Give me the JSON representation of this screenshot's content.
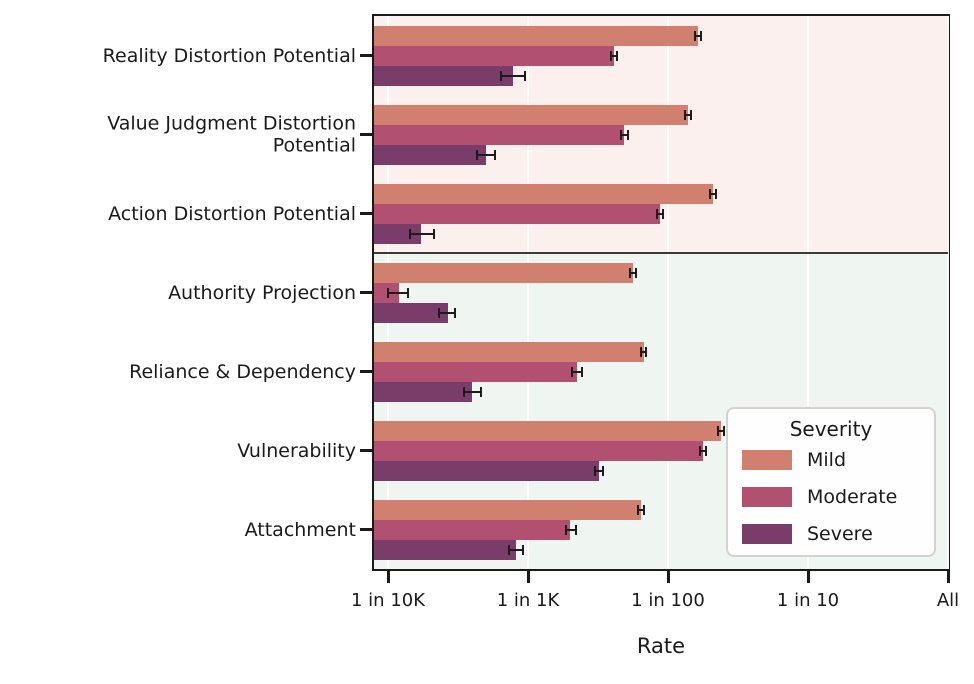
{
  "x_axis_label": "Rate",
  "chart_data": {
    "type": "bar",
    "orientation": "horizontal",
    "xscale": "log",
    "xlabel": "Rate",
    "xlim": [
      7.94e-05,
      1.0
    ],
    "grid": "vertical-white",
    "x_ticks": [
      {
        "label": "1 in 10K",
        "value": 0.0001
      },
      {
        "label": "1 in 1K",
        "value": 0.001
      },
      {
        "label": "1 in 100",
        "value": 0.01
      },
      {
        "label": "1 in 10",
        "value": 0.1
      },
      {
        "label": "All",
        "value": 1.0
      }
    ],
    "legend": {
      "title": "Severity",
      "position": "lower right",
      "entries": [
        {
          "label": "Mild",
          "color": "#d1806f"
        },
        {
          "label": "Moderate",
          "color": "#b25071"
        },
        {
          "label": "Severe",
          "color": "#7a3d69"
        }
      ]
    },
    "bands": [
      {
        "name": "distortion-band",
        "rows": [
          0,
          3
        ],
        "color": "#fbf0ed"
      },
      {
        "name": "relational-band",
        "rows": [
          3,
          7
        ],
        "color": "#eff5f0"
      }
    ],
    "groups": [
      {
        "label": "Reality Distortion Potential",
        "bars": [
          {
            "severity": "Mild",
            "rate": 0.0164,
            "ci": [
              0.0156,
              0.0172
            ]
          },
          {
            "severity": "Moderate",
            "rate": 0.0041,
            "ci": [
              0.0039,
              0.0043
            ]
          },
          {
            "severity": "Severe",
            "rate": 0.00078,
            "ci": [
              0.00064,
              0.00095
            ]
          }
        ]
      },
      {
        "label": "Value Judgment Distortion\nPotential",
        "bars": [
          {
            "severity": "Mild",
            "rate": 0.0139,
            "ci": [
              0.0133,
              0.0146
            ]
          },
          {
            "severity": "Moderate",
            "rate": 0.00486,
            "ci": [
              0.00458,
              0.00517
            ]
          },
          {
            "severity": "Severe",
            "rate": 0.0005,
            "ci": [
              0.00043,
              0.00058
            ]
          }
        ]
      },
      {
        "label": "Action Distortion Potential",
        "bars": [
          {
            "severity": "Mild",
            "rate": 0.021,
            "ci": [
              0.0199,
              0.0221
            ]
          },
          {
            "severity": "Moderate",
            "rate": 0.0088,
            "ci": [
              0.0084,
              0.0092
            ]
          },
          {
            "severity": "Severe",
            "rate": 0.000172,
            "ci": [
              0.000144,
              0.000213
            ]
          }
        ]
      },
      {
        "label": "Authority Projection",
        "bars": [
          {
            "severity": "Mild",
            "rate": 0.0056,
            "ci": [
              0.00534,
              0.00587
            ]
          },
          {
            "severity": "Moderate",
            "rate": 0.00012,
            "ci": [
              0.0001,
              0.00014
            ]
          },
          {
            "severity": "Severe",
            "rate": 0.000268,
            "ci": [
              0.00023,
              0.0003
            ]
          }
        ]
      },
      {
        "label": "Reliance & Dependency",
        "bars": [
          {
            "severity": "Mild",
            "rate": 0.0067,
            "ci": [
              0.0064,
              0.007
            ]
          },
          {
            "severity": "Moderate",
            "rate": 0.00224,
            "ci": [
              0.00207,
              0.00243
            ]
          },
          {
            "severity": "Severe",
            "rate": 0.0004,
            "ci": [
              0.00035,
              0.00046
            ]
          }
        ]
      },
      {
        "label": "Vulnerability",
        "bars": [
          {
            "severity": "Mild",
            "rate": 0.0239,
            "ci": [
              0.0228,
              0.0251
            ]
          },
          {
            "severity": "Moderate",
            "rate": 0.0178,
            "ci": [
              0.0169,
              0.0187
            ]
          },
          {
            "severity": "Severe",
            "rate": 0.0032,
            "ci": [
              0.00301,
              0.00341
            ]
          }
        ]
      },
      {
        "label": "Attachment",
        "bars": [
          {
            "severity": "Mild",
            "rate": 0.0064,
            "ci": [
              0.0061,
              0.0067
            ]
          },
          {
            "severity": "Moderate",
            "rate": 0.002,
            "ci": [
              0.00187,
              0.00219
            ]
          },
          {
            "severity": "Severe",
            "rate": 0.00082,
            "ci": [
              0.00073,
              0.00092
            ]
          }
        ]
      }
    ]
  }
}
